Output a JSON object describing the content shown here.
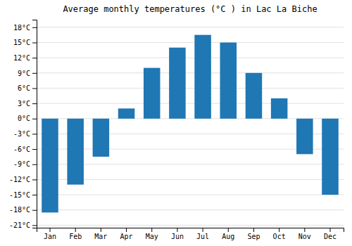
{
  "chart_data": {
    "type": "bar",
    "title": "Average monthly temperatures (°C ) in Lac La Biche",
    "categories": [
      "Jan",
      "Feb",
      "Mar",
      "Apr",
      "May",
      "Jun",
      "Jul",
      "Aug",
      "Sep",
      "Oct",
      "Nov",
      "Dec"
    ],
    "values": [
      -18.5,
      -13.0,
      -7.5,
      2.0,
      10.0,
      14.0,
      16.5,
      15.0,
      9.0,
      4.0,
      -7.0,
      -15.0
    ],
    "ylim": [
      -21.5,
      19.5
    ],
    "yticks": [
      {
        "value": -21,
        "label": "-21°C"
      },
      {
        "value": -18,
        "label": "-18°C"
      },
      {
        "value": -15,
        "label": "-15°C"
      },
      {
        "value": -12,
        "label": "-12°C"
      },
      {
        "value": -9,
        "label": "-9°C"
      },
      {
        "value": -6,
        "label": "-6°C"
      },
      {
        "value": -3,
        "label": "-3°C"
      },
      {
        "value": 0,
        "label": "0°C"
      },
      {
        "value": 3,
        "label": "3°C"
      },
      {
        "value": 6,
        "label": "6°C"
      },
      {
        "value": 9,
        "label": "9°C"
      },
      {
        "value": 12,
        "label": "12°C"
      },
      {
        "value": 15,
        "label": "15°C"
      },
      {
        "value": 18,
        "label": "18°C"
      }
    ],
    "grid": true
  }
}
